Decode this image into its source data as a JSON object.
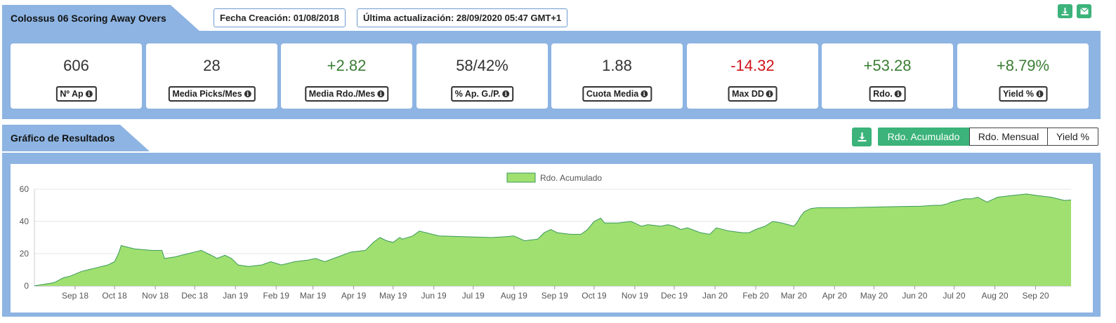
{
  "header": {
    "title": "Colossus 06 Scoring Away Overs",
    "fecha_creacion": "Fecha Creación: 01/08/2018",
    "ultima_actualizacion": "Última actualización: 28/09/2020 05:47 GMT+1",
    "icons": [
      "download-icon",
      "envelope-icon"
    ],
    "accent_color": "#3bb37a",
    "panel_color": "#8db4e2"
  },
  "stats": [
    {
      "value": "606",
      "label": "Nº Ap",
      "tone": "neutral"
    },
    {
      "value": "28",
      "label": "Media Picks/Mes",
      "tone": "neutral"
    },
    {
      "value": "+2.82",
      "label": "Media Rdo./Mes",
      "tone": "pos"
    },
    {
      "value": "58/42%",
      "label": "% Ap. G./P.",
      "tone": "neutral"
    },
    {
      "value": "1.88",
      "label": "Cuota Media",
      "tone": "neutral"
    },
    {
      "value": "-14.32",
      "label": "Max DD",
      "tone": "neg"
    },
    {
      "value": "+53.28",
      "label": "Rdo.",
      "tone": "pos"
    },
    {
      "value": "+8.79%",
      "label": "Yield %",
      "tone": "pos"
    }
  ],
  "chart_section": {
    "title": "Gráfico de Resultados",
    "buttons": [
      {
        "label": "Rdo. Acumulado",
        "active": true
      },
      {
        "label": "Rdo. Mensual",
        "active": false
      },
      {
        "label": "Yield %",
        "active": false
      }
    ]
  },
  "chart_data": {
    "type": "area",
    "legend": [
      "Rdo. Acumulado"
    ],
    "legend_position": "top-center",
    "fill_color": "#a0e070",
    "line_color": "#3a9a5a",
    "ylim": [
      0,
      60
    ],
    "yticks": [
      0,
      20,
      40,
      60
    ],
    "xlim": [
      "2018-08-01",
      "2020-09-28"
    ],
    "xticks": [
      {
        "date": "2018-09-01",
        "label": "Sep 18"
      },
      {
        "date": "2018-10-01",
        "label": "Oct 18"
      },
      {
        "date": "2018-11-01",
        "label": "Nov 18"
      },
      {
        "date": "2018-12-01",
        "label": "Dec 18"
      },
      {
        "date": "2019-01-01",
        "label": "Jan 19"
      },
      {
        "date": "2019-02-01",
        "label": "Feb 19"
      },
      {
        "date": "2019-03-01",
        "label": "Mar 19"
      },
      {
        "date": "2019-04-01",
        "label": "Apr 19"
      },
      {
        "date": "2019-05-01",
        "label": "May 19"
      },
      {
        "date": "2019-06-01",
        "label": "Jun 19"
      },
      {
        "date": "2019-07-01",
        "label": "Jul 19"
      },
      {
        "date": "2019-08-01",
        "label": "Aug 19"
      },
      {
        "date": "2019-09-01",
        "label": "Sep 19"
      },
      {
        "date": "2019-10-01",
        "label": "Oct 19"
      },
      {
        "date": "2019-11-01",
        "label": "Nov 19"
      },
      {
        "date": "2019-12-01",
        "label": "Dec 19"
      },
      {
        "date": "2020-01-01",
        "label": "Jan 20"
      },
      {
        "date": "2020-02-01",
        "label": "Feb 20"
      },
      {
        "date": "2020-03-01",
        "label": "Mar 20"
      },
      {
        "date": "2020-04-01",
        "label": "Apr 20"
      },
      {
        "date": "2020-05-01",
        "label": "May 20"
      },
      {
        "date": "2020-06-01",
        "label": "Jun 20"
      },
      {
        "date": "2020-07-01",
        "label": "Jul 20"
      },
      {
        "date": "2020-08-01",
        "label": "Aug 20"
      },
      {
        "date": "2020-09-01",
        "label": "Sep 20"
      }
    ],
    "series": [
      {
        "name": "Rdo. Acumulado",
        "points": [
          [
            "2018-08-01",
            0
          ],
          [
            "2018-08-16",
            2
          ],
          [
            "2018-08-23",
            5
          ],
          [
            "2018-08-28",
            6
          ],
          [
            "2018-09-06",
            9
          ],
          [
            "2018-09-16",
            11
          ],
          [
            "2018-09-26",
            13
          ],
          [
            "2018-10-01",
            15
          ],
          [
            "2018-10-04",
            20
          ],
          [
            "2018-10-06",
            25
          ],
          [
            "2018-10-16",
            23
          ],
          [
            "2018-10-29",
            22
          ],
          [
            "2018-11-06",
            22
          ],
          [
            "2018-11-08",
            17
          ],
          [
            "2018-11-16",
            18
          ],
          [
            "2018-11-26",
            20
          ],
          [
            "2018-12-01",
            21
          ],
          [
            "2018-12-06",
            22
          ],
          [
            "2018-12-11",
            20
          ],
          [
            "2018-12-16",
            18
          ],
          [
            "2018-12-18",
            17
          ],
          [
            "2018-12-24",
            19
          ],
          [
            "2018-12-29",
            17
          ],
          [
            "2019-01-03",
            13
          ],
          [
            "2019-01-11",
            12
          ],
          [
            "2019-01-21",
            13
          ],
          [
            "2019-01-28",
            15
          ],
          [
            "2019-02-05",
            13
          ],
          [
            "2019-02-10",
            14
          ],
          [
            "2019-02-15",
            15
          ],
          [
            "2019-02-25",
            16
          ],
          [
            "2019-03-03",
            17
          ],
          [
            "2019-03-10",
            15
          ],
          [
            "2019-03-20",
            18
          ],
          [
            "2019-03-30",
            21
          ],
          [
            "2019-04-10",
            22
          ],
          [
            "2019-04-16",
            27
          ],
          [
            "2019-04-21",
            30
          ],
          [
            "2019-04-26",
            28
          ],
          [
            "2019-05-01",
            27
          ],
          [
            "2019-05-06",
            30
          ],
          [
            "2019-05-08",
            29
          ],
          [
            "2019-05-16",
            31
          ],
          [
            "2019-05-21",
            34
          ],
          [
            "2019-05-26",
            33
          ],
          [
            "2019-06-05",
            31
          ],
          [
            "2019-06-25",
            30.5
          ],
          [
            "2019-07-15",
            30
          ],
          [
            "2019-07-25",
            30.5
          ],
          [
            "2019-08-01",
            31
          ],
          [
            "2019-08-09",
            28
          ],
          [
            "2019-08-19",
            29
          ],
          [
            "2019-08-24",
            33
          ],
          [
            "2019-08-29",
            35
          ],
          [
            "2019-09-03",
            33
          ],
          [
            "2019-09-13",
            32
          ],
          [
            "2019-09-21",
            32
          ],
          [
            "2019-09-26",
            35
          ],
          [
            "2019-10-01",
            40
          ],
          [
            "2019-10-06",
            42
          ],
          [
            "2019-10-09",
            39
          ],
          [
            "2019-10-19",
            39
          ],
          [
            "2019-10-29",
            40
          ],
          [
            "2019-11-01",
            39
          ],
          [
            "2019-11-06",
            37
          ],
          [
            "2019-11-11",
            38
          ],
          [
            "2019-11-21",
            37
          ],
          [
            "2019-11-26",
            38
          ],
          [
            "2019-12-01",
            37
          ],
          [
            "2019-12-06",
            35
          ],
          [
            "2019-12-11",
            36
          ],
          [
            "2019-12-21",
            33
          ],
          [
            "2019-12-28",
            32
          ],
          [
            "2020-01-02",
            36
          ],
          [
            "2020-01-12",
            34
          ],
          [
            "2020-01-22",
            33
          ],
          [
            "2020-01-27",
            33
          ],
          [
            "2020-02-01",
            35
          ],
          [
            "2020-02-08",
            37
          ],
          [
            "2020-02-14",
            40
          ],
          [
            "2020-02-21",
            39
          ],
          [
            "2020-03-01",
            37
          ],
          [
            "2020-03-04",
            40
          ],
          [
            "2020-03-06",
            43
          ],
          [
            "2020-03-09",
            46
          ],
          [
            "2020-03-14",
            48
          ],
          [
            "2020-03-19",
            48.5
          ],
          [
            "2020-04-08",
            48.5
          ],
          [
            "2020-05-08",
            49
          ],
          [
            "2020-06-06",
            49.5
          ],
          [
            "2020-06-16",
            50
          ],
          [
            "2020-06-21",
            50
          ],
          [
            "2020-06-26",
            51
          ],
          [
            "2020-06-29",
            52
          ],
          [
            "2020-07-04",
            53
          ],
          [
            "2020-07-09",
            54
          ],
          [
            "2020-07-14",
            54
          ],
          [
            "2020-07-19",
            55
          ],
          [
            "2020-07-26",
            52
          ],
          [
            "2020-08-03",
            55
          ],
          [
            "2020-08-13",
            56
          ],
          [
            "2020-08-25",
            57
          ],
          [
            "2020-09-03",
            56
          ],
          [
            "2020-09-13",
            55
          ],
          [
            "2020-09-23",
            53
          ],
          [
            "2020-09-28",
            53.3
          ]
        ]
      }
    ]
  }
}
